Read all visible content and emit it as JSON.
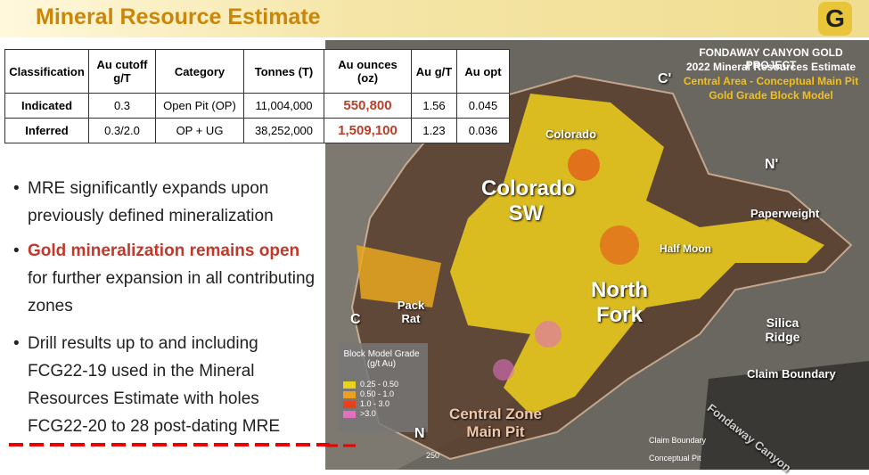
{
  "header": {
    "title": "Mineral Resource Estimate",
    "logo": "G"
  },
  "table": {
    "headers": [
      "Classification",
      "Au cutoff g/T",
      "Category",
      "Tonnes (T)",
      "Au ounces (oz)",
      "Au g/T",
      "Au opt"
    ],
    "rows": [
      [
        "Indicated",
        "0.3",
        "Open Pit (OP)",
        "11,004,000",
        "550,800",
        "1.56",
        "0.045"
      ],
      [
        "Inferred",
        "0.3/2.0",
        "OP + UG",
        "38,252,000",
        "1,509,100",
        "1.23",
        "0.036"
      ]
    ]
  },
  "bullets": [
    {
      "text": "MRE significantly expands upon previously defined mineralization"
    },
    {
      "highlight": "Gold mineralization remains open",
      "text": "for further expansion in all contributing zones"
    },
    {
      "text": "Drill results up to and including FCG22-19 used in the Mineral Resources Estimate with holes FCG22-20 to 28 post-dating MRE"
    }
  ],
  "map": {
    "header": [
      "FONDAWAY CANYON GOLD PROJECT",
      "2022 Mineral Resources Estimate",
      "Central Area - Conceptual Main Pit",
      "Gold Grade Block Model"
    ],
    "labels": [
      "C'",
      "N'",
      "C",
      "N",
      "Colorado",
      "Colorado SW",
      "North Fork",
      "Paperweight",
      "Half Moon",
      "Pack Rat",
      "Silica Ridge",
      "Claim Boundary",
      "Central Zone Main Pit",
      "Fondaway Canyon"
    ],
    "legend": {
      "title": "Block Model Grade (g/t Au)",
      "items": [
        {
          "label": "0.25 - 0.50",
          "color": "#e8d21a"
        },
        {
          "label": "0.50 - 1.0",
          "color": "#f0a020"
        },
        {
          "label": "1.0 - 3.0",
          "color": "#e8401a"
        },
        {
          "label": ">3.0",
          "color": "#e070c0"
        }
      ]
    },
    "bottom_legend": [
      "Claim Boundary",
      "Conceptual Pit"
    ],
    "scale": "250"
  }
}
